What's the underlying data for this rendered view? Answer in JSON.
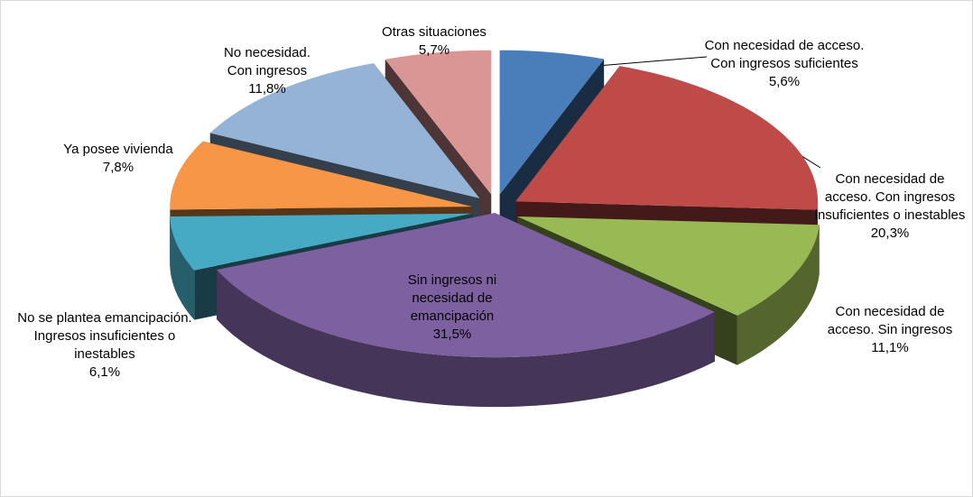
{
  "chart_data": {
    "type": "pie3d",
    "categories": [
      "Con necesidad de acceso. Con ingresos suficientes",
      "Con necesidad de acceso. Con ingresos insuficientes o inestables",
      "Con necesidad de acceso. Sin ingresos",
      "Sin ingresos ni necesidad de emancipación",
      "No se plantea emancipación. Ingresos insuficientes o inestables",
      "Ya posee vivienda",
      "No necesidad. Con ingresos",
      "Otras situaciones"
    ],
    "values": [
      5.6,
      20.3,
      11.1,
      31.5,
      6.1,
      7.8,
      11.8,
      5.7
    ],
    "value_labels": [
      "5,6%",
      "20,3%",
      "11,1%",
      "31,5%",
      "6,1%",
      "7,8%",
      "11,8%",
      "5,7%"
    ],
    "colors": [
      "#4a7ebb",
      "#be4b48",
      "#98b954",
      "#7d60a0",
      "#46aac5",
      "#f79646",
      "#95b3d7",
      "#d99694"
    ]
  }
}
